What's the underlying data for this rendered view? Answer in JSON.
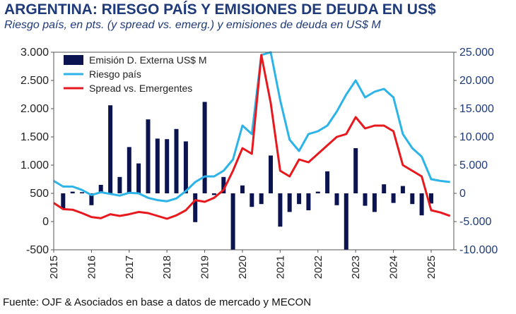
{
  "title": "ARGENTINA: RIESGO PAÍS Y EMISIONES DE DEUDA EN US$",
  "subtitle": "Riesgo país, en pts. (y spread vs. emerg.) y emisiones de deuda en US$ M",
  "source": "Fuente:  OJF & Asociados en base a datos de mercado y MECON",
  "colors": {
    "bars": "#0b1450",
    "riesgo": "#2cb3e8",
    "spread": "#e8191e",
    "title": "#1f3a78"
  },
  "chart_data": {
    "type": "bar+line",
    "legend_position": "top-left",
    "grid": false,
    "y_left": {
      "min": -500,
      "max": 3000,
      "ticks": [
        "-500",
        "0",
        "500",
        "1.000",
        "1.500",
        "2.000",
        "2.500",
        "3.000"
      ],
      "tick_values": [
        -500,
        0,
        500,
        1000,
        1500,
        2000,
        2500,
        3000
      ]
    },
    "y_right": {
      "min": -10000,
      "max": 25000,
      "ticks": [
        "-10.000",
        "-5.000",
        "0",
        "5.000",
        "10.000",
        "15.000",
        "20.000",
        "25.000"
      ],
      "tick_values": [
        -10000,
        -5000,
        0,
        5000,
        10000,
        15000,
        20000,
        25000
      ]
    },
    "x": {
      "min": 2015.0,
      "max": 2025.6,
      "ticks": [
        "2015",
        "2016",
        "2017",
        "2018",
        "2019",
        "2020",
        "2021",
        "2022",
        "2023",
        "2024",
        "2025"
      ],
      "tick_values": [
        2015,
        2016,
        2017,
        2018,
        2019,
        2020,
        2021,
        2022,
        2023,
        2024,
        2025
      ]
    },
    "bars": {
      "name": "Emisión D. Externa US$ M",
      "axis": "right",
      "x": [
        2015.25,
        2015.5,
        2015.75,
        2016.0,
        2016.25,
        2016.5,
        2016.75,
        2017.0,
        2017.25,
        2017.5,
        2017.75,
        2018.0,
        2018.25,
        2018.5,
        2018.75,
        2019.0,
        2019.25,
        2019.5,
        2019.75,
        2020.0,
        2020.25,
        2020.5,
        2020.75,
        2021.0,
        2021.25,
        2021.5,
        2021.75,
        2022.0,
        2022.25,
        2022.5,
        2022.75,
        2023.0,
        2023.25,
        2023.5,
        2023.75,
        2024.0,
        2024.25,
        2024.5,
        2024.75,
        2025.0
      ],
      "values": [
        -2700,
        300,
        200,
        -2100,
        1500,
        15600,
        2900,
        8200,
        5300,
        13100,
        9700,
        9600,
        11400,
        9200,
        -5100,
        16200,
        -300,
        2900,
        -11400,
        1400,
        -2400,
        -1900,
        6700,
        -5900,
        -3300,
        -1900,
        -3000,
        300,
        3900,
        -2100,
        -10000,
        8000,
        -2200,
        -3300,
        1600,
        -1700,
        1300,
        -1900,
        -3900,
        -1800
      ]
    },
    "series": [
      {
        "name": "Riesgo país",
        "axis": "left",
        "x": [
          2015.0,
          2015.25,
          2015.5,
          2015.75,
          2016.0,
          2016.25,
          2016.5,
          2016.75,
          2017.0,
          2017.25,
          2017.5,
          2017.75,
          2018.0,
          2018.25,
          2018.5,
          2018.75,
          2019.0,
          2019.25,
          2019.5,
          2019.75,
          2020.0,
          2020.25,
          2020.5,
          2020.75,
          2021.0,
          2021.25,
          2021.5,
          2021.75,
          2022.0,
          2022.25,
          2022.5,
          2022.75,
          2023.0,
          2023.25,
          2023.5,
          2023.75,
          2024.0,
          2024.25,
          2024.5,
          2024.75,
          2025.0,
          2025.25,
          2025.5
        ],
        "values": [
          720,
          620,
          620,
          560,
          470,
          520,
          490,
          460,
          510,
          500,
          420,
          380,
          360,
          410,
          540,
          700,
          800,
          800,
          900,
          1100,
          1700,
          1550,
          2950,
          3200,
          2150,
          1450,
          1250,
          1550,
          1600,
          1700,
          1950,
          2250,
          2500,
          2200,
          2300,
          2350,
          2200,
          1550,
          1300,
          1150,
          750,
          720,
          700
        ]
      },
      {
        "name": "Spread vs. Emergentes",
        "axis": "left",
        "x": [
          2015.0,
          2015.25,
          2015.5,
          2015.75,
          2016.0,
          2016.25,
          2016.5,
          2016.75,
          2017.0,
          2017.25,
          2017.5,
          2017.75,
          2018.0,
          2018.25,
          2018.5,
          2018.75,
          2019.0,
          2019.25,
          2019.5,
          2019.75,
          2020.0,
          2020.25,
          2020.5,
          2020.75,
          2021.0,
          2021.25,
          2021.5,
          2021.75,
          2022.0,
          2022.25,
          2022.5,
          2022.75,
          2023.0,
          2023.25,
          2023.5,
          2023.75,
          2024.0,
          2024.25,
          2024.5,
          2024.75,
          2025.0,
          2025.25,
          2025.5
        ],
        "values": [
          330,
          220,
          210,
          150,
          80,
          60,
          130,
          100,
          130,
          170,
          150,
          100,
          50,
          110,
          200,
          380,
          350,
          420,
          560,
          900,
          1300,
          1200,
          2950,
          2100,
          900,
          800,
          1100,
          1050,
          1200,
          1350,
          1500,
          1550,
          1850,
          1650,
          1700,
          1700,
          1600,
          1000,
          900,
          800,
          200,
          160,
          100
        ]
      }
    ]
  }
}
